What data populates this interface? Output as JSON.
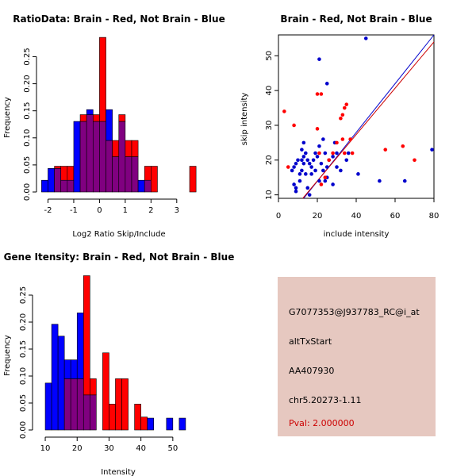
{
  "chart_data": [
    {
      "type": "bar",
      "title": "RatioData: Brain - Red, Not Brain - Blue",
      "xlabel": "Log2 Ratio Skip/Include",
      "ylabel": "Frequency",
      "xlim": [
        -2.2,
        3.9
      ],
      "ylim": [
        0,
        0.28
      ],
      "xticks": [
        -2,
        -1,
        0,
        1,
        2,
        3
      ],
      "yticks": [
        0.0,
        0.05,
        0.1,
        0.15,
        0.2,
        0.25
      ],
      "ytick_labels": [
        "0.00",
        "0.05",
        "0.10",
        "0.15",
        "0.20",
        "0.25"
      ],
      "bin_width": 0.25,
      "series": [
        {
          "name": "Not Brain",
          "color": "#0000ff",
          "bins": [
            [
              -2.25,
              0.0217
            ],
            [
              -2.0,
              0.0435
            ],
            [
              -1.75,
              0.0435
            ],
            [
              -1.5,
              0.0217
            ],
            [
              -1.25,
              0.0217
            ],
            [
              -1.0,
              0.1304
            ],
            [
              -0.75,
              0.1304
            ],
            [
              -0.5,
              0.1522
            ],
            [
              -0.25,
              0.1304
            ],
            [
              0.0,
              0.1304
            ],
            [
              0.25,
              0.1522
            ],
            [
              0.5,
              0.0652
            ],
            [
              0.75,
              0.1304
            ],
            [
              1.0,
              0.0652
            ],
            [
              1.25,
              0.0652
            ],
            [
              1.5,
              0.0217
            ],
            [
              1.75,
              0.0217
            ]
          ]
        },
        {
          "name": "Brain",
          "color": "#ff0000",
          "bins": [
            [
              -1.75,
              0.0476
            ],
            [
              -1.5,
              0.0476
            ],
            [
              -1.25,
              0.0476
            ],
            [
              -0.75,
              0.1429
            ],
            [
              -0.5,
              0.1429
            ],
            [
              -0.25,
              0.1429
            ],
            [
              0.0,
              0.2857
            ],
            [
              0.25,
              0.0952
            ],
            [
              0.5,
              0.0952
            ],
            [
              0.75,
              0.1429
            ],
            [
              1.0,
              0.0952
            ],
            [
              1.25,
              0.0952
            ],
            [
              1.75,
              0.0476
            ],
            [
              2.0,
              0.0476
            ],
            [
              3.5,
              0.0476
            ]
          ]
        }
      ]
    },
    {
      "type": "scatter",
      "title": "Brain - Red, Not Brain - Blue",
      "xlabel": "include intensity",
      "ylabel": "skip intensity",
      "xlim": [
        0,
        80
      ],
      "ylim": [
        9,
        56
      ],
      "xticks": [
        0,
        20,
        40,
        60,
        80
      ],
      "yticks": [
        10,
        20,
        30,
        40,
        50
      ],
      "series": [
        {
          "name": "Not Brain",
          "color": "#0000cc",
          "points": [
            [
              7,
              17
            ],
            [
              8,
              18
            ],
            [
              9,
              19
            ],
            [
              10,
              20
            ],
            [
              12,
              20
            ],
            [
              13,
              21
            ],
            [
              14,
              22
            ],
            [
              15,
              20
            ],
            [
              16,
              19
            ],
            [
              18,
              20
            ],
            [
              20,
              21
            ],
            [
              22,
              19
            ],
            [
              24,
              22
            ],
            [
              26,
              20
            ],
            [
              28,
              21
            ],
            [
              30,
              18
            ],
            [
              11,
              16
            ],
            [
              12,
              17
            ],
            [
              14,
              16
            ],
            [
              17,
              16
            ],
            [
              19,
              17
            ],
            [
              23,
              17
            ],
            [
              25,
              18
            ],
            [
              9,
              12
            ],
            [
              11,
              14
            ],
            [
              15,
              12
            ],
            [
              21,
              14
            ],
            [
              25,
              15
            ],
            [
              28,
              13
            ],
            [
              13,
              25
            ],
            [
              21,
              24
            ],
            [
              23,
              26
            ],
            [
              35,
              20
            ],
            [
              36,
              22
            ],
            [
              45,
              55
            ],
            [
              21,
              49
            ],
            [
              25,
              42
            ],
            [
              41,
              16
            ],
            [
              52,
              14
            ],
            [
              65,
              14
            ],
            [
              79,
              23
            ],
            [
              29,
              25
            ],
            [
              13,
              19
            ],
            [
              9,
              11
            ],
            [
              8,
              13
            ],
            [
              24,
              14
            ],
            [
              32,
              17
            ],
            [
              16,
              10
            ],
            [
              19,
              22
            ],
            [
              12,
              23
            ],
            [
              30,
              22
            ],
            [
              17,
              18
            ]
          ]
        },
        {
          "name": "Brain",
          "color": "#ff0000",
          "points": [
            [
              3,
              34
            ],
            [
              8,
              30
            ],
            [
              5,
              18
            ],
            [
              20,
              39
            ],
            [
              22,
              39
            ],
            [
              20,
              29
            ],
            [
              21,
              22
            ],
            [
              22,
              13
            ],
            [
              24,
              15
            ],
            [
              26,
              20
            ],
            [
              28,
              22
            ],
            [
              30,
              25
            ],
            [
              32,
              32
            ],
            [
              33,
              33
            ],
            [
              34,
              35
            ],
            [
              35,
              36
            ],
            [
              33,
              26
            ],
            [
              37,
              26
            ],
            [
              38,
              22
            ],
            [
              55,
              23
            ],
            [
              64,
              24
            ],
            [
              70,
              20
            ],
            [
              34,
              22
            ]
          ]
        }
      ],
      "lines": [
        {
          "name": "fit-blue",
          "color": "#0000cc",
          "from": [
            13,
            9
          ],
          "to": [
            80,
            56
          ]
        },
        {
          "name": "fit-red",
          "color": "#cc0000",
          "from": [
            12.5,
            9
          ],
          "to": [
            80,
            54
          ]
        }
      ]
    },
    {
      "type": "bar",
      "title": "Gene Itensity: Brain - Red, Not Brain - Blue",
      "xlabel": "Intensity",
      "ylabel": "Frequency",
      "xlim": [
        8,
        58
      ],
      "ylim": [
        0,
        0.3
      ],
      "xticks": [
        10,
        20,
        30,
        40,
        50
      ],
      "yticks": [
        0.0,
        0.05,
        0.1,
        0.15,
        0.2,
        0.25
      ],
      "ytick_labels": [
        "0.00",
        "0.05",
        "0.10",
        "0.15",
        "0.20",
        "0.25"
      ],
      "bin_width": 2,
      "series": [
        {
          "name": "Not Brain",
          "color": "#0000ff",
          "bins": [
            [
              10,
              0.087
            ],
            [
              12,
              0.196
            ],
            [
              14,
              0.174
            ],
            [
              16,
              0.13
            ],
            [
              18,
              0.13
            ],
            [
              20,
              0.217
            ],
            [
              22,
              0.065
            ],
            [
              24,
              0.065
            ],
            [
              42,
              0.022
            ],
            [
              48,
              0.022
            ],
            [
              52,
              0.022
            ]
          ]
        },
        {
          "name": "Brain",
          "color": "#ff0000",
          "bins": [
            [
              16,
              0.095
            ],
            [
              18,
              0.095
            ],
            [
              20,
              0.095
            ],
            [
              22,
              0.286
            ],
            [
              24,
              0.095
            ],
            [
              28,
              0.143
            ],
            [
              30,
              0.048
            ],
            [
              32,
              0.095
            ],
            [
              34,
              0.095
            ],
            [
              38,
              0.048
            ],
            [
              40,
              0.024
            ]
          ]
        }
      ]
    }
  ],
  "info_panel": {
    "probe": "G7077353@J937783_RC@i_at",
    "event": "altTxStart",
    "accession": "AA407930",
    "location": "chr5.20273-1.11",
    "pval": "Pval: 2.000000"
  },
  "colors": {
    "panel_bg": "#e6c8c0",
    "overlap": "#800080"
  }
}
